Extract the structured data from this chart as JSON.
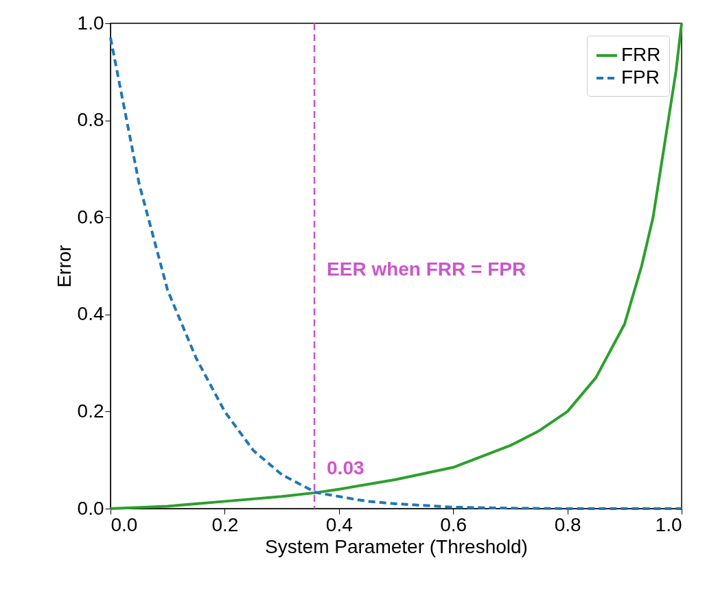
{
  "chart_data": {
    "type": "line",
    "xlabel": "System Parameter (Threshold)",
    "ylabel": "Error",
    "xlim": [
      0,
      1
    ],
    "ylim": [
      0,
      1
    ],
    "xticks": [
      {
        "value": 0,
        "label": "0.0"
      },
      {
        "value": 0.2,
        "label": "0.2"
      },
      {
        "value": 0.4,
        "label": "0.4"
      },
      {
        "value": 0.6,
        "label": "0.6"
      },
      {
        "value": 0.8,
        "label": "0.8"
      },
      {
        "value": 1,
        "label": "1.0"
      }
    ],
    "yticks": [
      {
        "value": 0,
        "label": "0.0"
      },
      {
        "value": 0.2,
        "label": "0.2"
      },
      {
        "value": 0.4,
        "label": "0.4"
      },
      {
        "value": 0.6,
        "label": "0.6"
      },
      {
        "value": 0.8,
        "label": "0.8"
      },
      {
        "value": 1,
        "label": "1.0"
      }
    ],
    "series": [
      {
        "name": "FRR",
        "color": "#2ca02c",
        "line_style": "solid",
        "x": [
          0,
          0.1,
          0.2,
          0.3,
          0.36,
          0.4,
          0.5,
          0.6,
          0.7,
          0.75,
          0.8,
          0.85,
          0.9,
          0.93,
          0.95,
          0.97,
          0.99,
          1.0
        ],
        "values": [
          0,
          0.005,
          0.015,
          0.025,
          0.033,
          0.04,
          0.06,
          0.085,
          0.13,
          0.16,
          0.2,
          0.27,
          0.38,
          0.5,
          0.6,
          0.75,
          0.9,
          1.0
        ]
      },
      {
        "name": "FPR",
        "color": "#1f77b4",
        "line_style": "dashed",
        "x": [
          0,
          0.05,
          0.1,
          0.15,
          0.2,
          0.25,
          0.3,
          0.36,
          0.45,
          0.5,
          0.6,
          0.7,
          0.8,
          0.9,
          1.0
        ],
        "values": [
          0.97,
          0.67,
          0.45,
          0.31,
          0.2,
          0.12,
          0.07,
          0.033,
          0.015,
          0.01,
          0.003,
          0.001,
          0,
          0,
          0
        ]
      }
    ],
    "ref_lines": [
      {
        "axis": "x",
        "value": 0.357,
        "color": "#cc55cc",
        "line_style": "dashed"
      }
    ],
    "annotations": [
      "EER when FRR = FPR",
      "0.03"
    ],
    "legend": "top right",
    "grid": false
  }
}
